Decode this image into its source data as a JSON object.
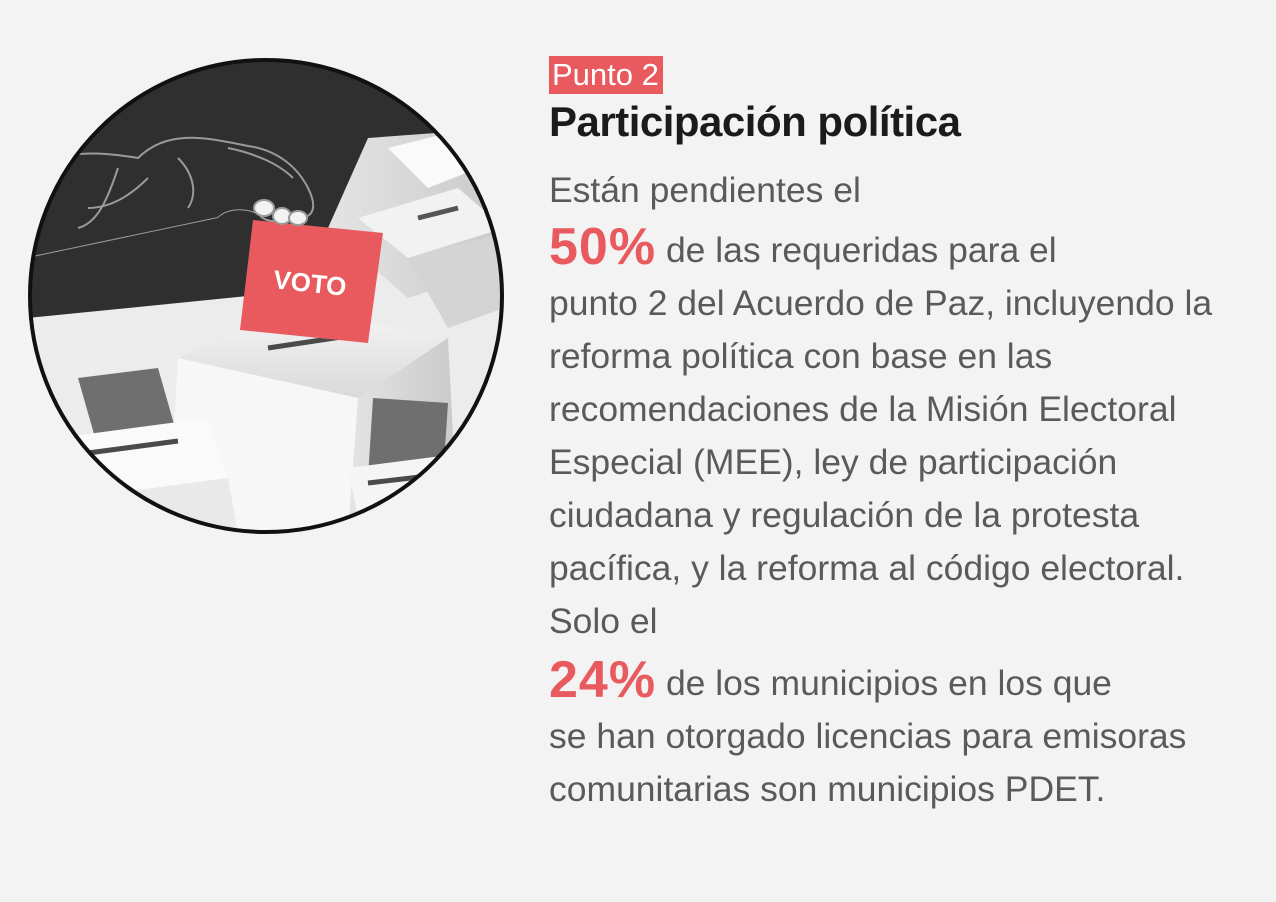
{
  "header": {
    "badge": "Punto 2",
    "title": "Participación política"
  },
  "illustration": {
    "ballot_label": "VOTO",
    "accent_color": "#e85a5e"
  },
  "body": {
    "intro": "Están pendientes el",
    "stat1": {
      "value": "50%",
      "line1": " de las requeridas para el",
      "rest": "punto 2 del Acuerdo de Paz, incluyendo la reforma política con base en las recomendaciones de la Misión Electoral Especial (MEE), ley de participación ciudadana y regulación de la protesta pacífica, y la reforma al código electoral. Solo el"
    },
    "stat2": {
      "value": "24%",
      "line1": " de los municipios en los que",
      "rest": "se han otorgado licencias para emisoras comunitarias son municipios PDET."
    }
  },
  "colors": {
    "accent": "#e85a5e",
    "title": "#1b1b1b",
    "body": "#5a5a5a",
    "background": "#f3f3f3"
  }
}
